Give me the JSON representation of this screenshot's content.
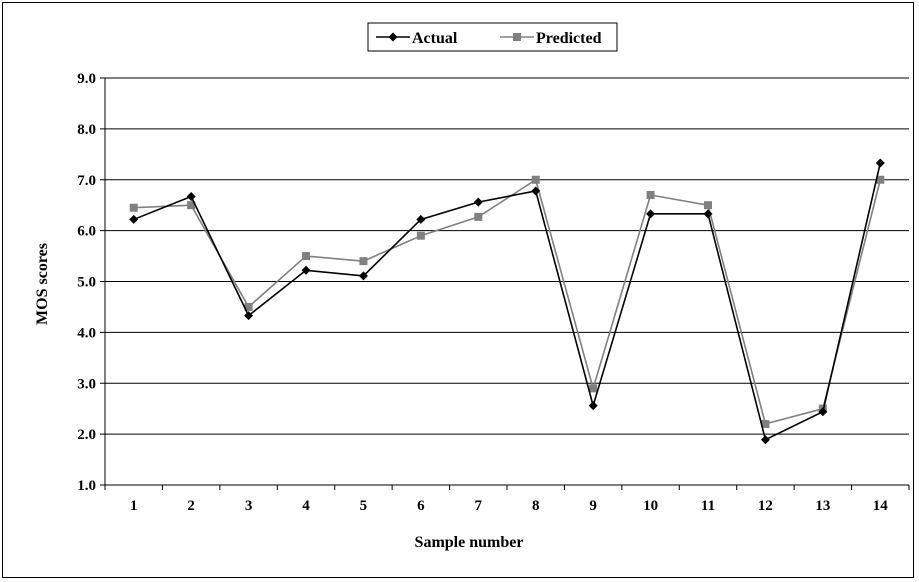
{
  "chart_data": {
    "type": "line",
    "title": "",
    "xlabel": "Sample number",
    "ylabel": "MOS scores",
    "x": [
      1,
      2,
      3,
      4,
      5,
      6,
      7,
      8,
      9,
      10,
      11,
      12,
      13,
      14
    ],
    "ylim": [
      1.0,
      9.0
    ],
    "yticks": [
      "1.0",
      "2.0",
      "3.0",
      "4.0",
      "5.0",
      "6.0",
      "7.0",
      "8.0",
      "9.0"
    ],
    "grid": true,
    "legend_position": "top-center",
    "series": [
      {
        "name": "Actual",
        "color": "#000000",
        "marker": "diamond",
        "values": [
          6.22,
          6.67,
          4.33,
          5.22,
          5.11,
          6.22,
          6.56,
          6.78,
          2.56,
          6.33,
          6.33,
          1.89,
          2.44,
          7.33
        ]
      },
      {
        "name": "Predicted",
        "color": "#808080",
        "marker": "square",
        "values": [
          6.45,
          6.5,
          4.5,
          5.5,
          5.4,
          5.9,
          6.27,
          7.0,
          2.9,
          6.7,
          6.5,
          2.2,
          2.5,
          7.0
        ]
      }
    ]
  }
}
